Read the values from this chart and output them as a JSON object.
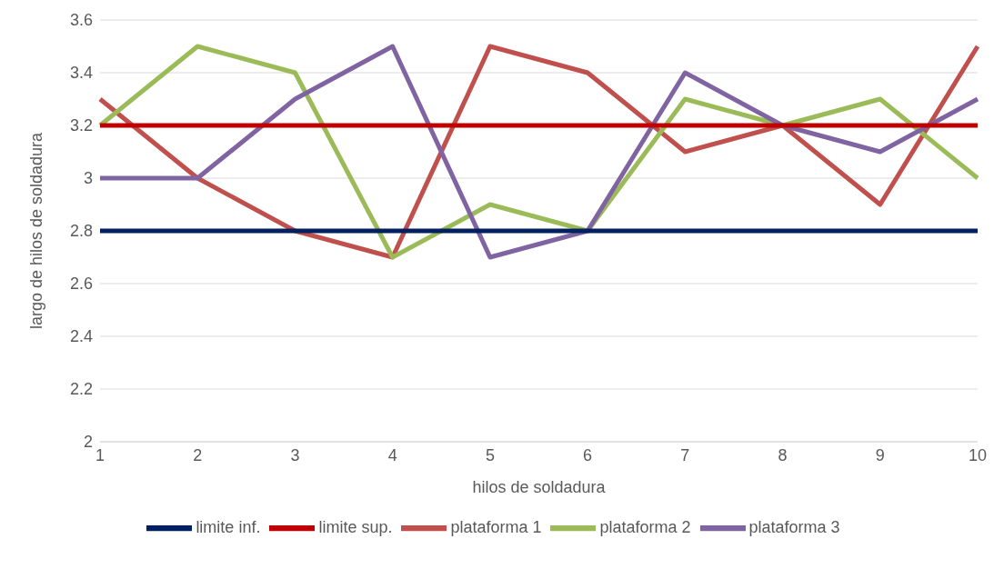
{
  "chart_data": {
    "type": "line",
    "xlabel": "hilos de soldadura",
    "ylabel": "largo de hilos de soldadura",
    "categories": [
      "1",
      "2",
      "3",
      "4",
      "5",
      "6",
      "7",
      "8",
      "9",
      "10"
    ],
    "series": [
      {
        "name": "plataforma 1",
        "color": "#c0504d",
        "values": [
          3.3,
          3.0,
          2.8,
          2.7,
          3.5,
          3.4,
          3.1,
          3.2,
          2.9,
          3.5
        ]
      },
      {
        "name": "plataforma 2",
        "color": "#9bbb59",
        "values": [
          3.2,
          3.5,
          3.4,
          2.7,
          2.9,
          2.8,
          3.3,
          3.2,
          3.3,
          3.0
        ]
      },
      {
        "name": "plataforma 3",
        "color": "#8064a2",
        "values": [
          3.0,
          3.0,
          3.3,
          3.5,
          2.7,
          2.8,
          3.4,
          3.2,
          3.1,
          3.3
        ]
      },
      {
        "name": "limite inf.",
        "color": "#002060",
        "values": [
          2.8,
          2.8,
          2.8,
          2.8,
          2.8,
          2.8,
          2.8,
          2.8,
          2.8,
          2.8
        ]
      },
      {
        "name": "limite sup.",
        "color": "#c00000",
        "values": [
          3.2,
          3.2,
          3.2,
          3.2,
          3.2,
          3.2,
          3.2,
          3.2,
          3.2,
          3.2
        ]
      }
    ],
    "ylim": [
      2,
      3.6
    ],
    "yticks": [
      2,
      2.2,
      2.4,
      2.6,
      2.8,
      3,
      3.2,
      3.4,
      3.6
    ],
    "grid": "y",
    "legend": "bottom",
    "marker": "none",
    "line_style": "solid"
  }
}
